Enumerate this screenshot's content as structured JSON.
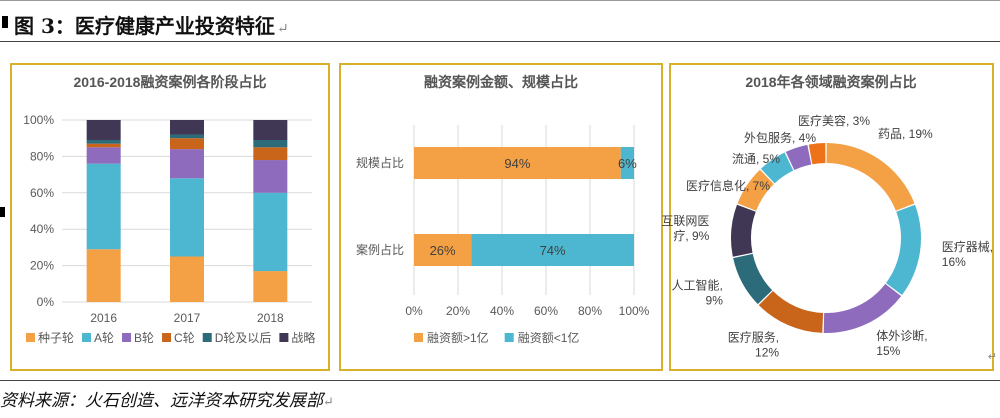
{
  "header": {
    "title": "图 3：医疗健康产业投资特征",
    "return_mark": "↵"
  },
  "source": {
    "text": "资料来源：火石创造、远洋资本研究发展部",
    "return_mark": "↵"
  },
  "corner_mark": "↵",
  "chart_data": [
    {
      "type": "bar",
      "stacked": true,
      "title": "2016-2018融资案例各阶段占比",
      "categories": [
        "2016",
        "2017",
        "2018"
      ],
      "y_ticks": [
        "0%",
        "20%",
        "40%",
        "60%",
        "80%",
        "100%"
      ],
      "ylim": [
        0,
        100
      ],
      "grid": true,
      "legend": "bottom",
      "series": [
        {
          "name": "种子轮",
          "color": "#f4a045",
          "values": [
            29,
            25,
            17
          ]
        },
        {
          "name": "A轮",
          "color": "#4db6d0",
          "values": [
            47,
            43,
            43
          ]
        },
        {
          "name": "B轮",
          "color": "#8e6bbd",
          "values": [
            9,
            16,
            18
          ]
        },
        {
          "name": "C轮",
          "color": "#c9641b",
          "values": [
            2,
            6,
            7
          ]
        },
        {
          "name": "D轮及以后",
          "color": "#2b6b7a",
          "values": [
            2,
            2,
            4
          ]
        },
        {
          "name": "战略",
          "color": "#3f3754",
          "values": [
            11,
            8,
            11
          ]
        }
      ]
    },
    {
      "type": "bar",
      "orientation": "horizontal",
      "stacked": true,
      "title": "融资案例金额、规模占比",
      "categories": [
        "规模占比",
        "案例占比"
      ],
      "x_ticks": [
        "0%",
        "20%",
        "40%",
        "60%",
        "80%",
        "100%"
      ],
      "xlim": [
        0,
        100
      ],
      "grid": true,
      "legend": "bottom",
      "series": [
        {
          "name": "融资额>1亿",
          "color": "#f4a045",
          "values": [
            94,
            26
          ],
          "labels": [
            "94%",
            "26%"
          ]
        },
        {
          "name": "融资额<1亿",
          "color": "#4db6d0",
          "values": [
            6,
            74
          ],
          "labels": [
            "6%",
            "74%"
          ]
        }
      ]
    },
    {
      "type": "pie",
      "donut": true,
      "title": "2018年各领域融资案例占比",
      "slices": [
        {
          "name": "药品",
          "value": 19,
          "color": "#f4a045",
          "label": "药品, 19%"
        },
        {
          "name": "医疗器械",
          "value": 16,
          "color": "#4db6d0",
          "label": "医疗器械,\n16%"
        },
        {
          "name": "体外诊断",
          "value": 15,
          "color": "#8e6bbd",
          "label": "体外诊断,\n15%"
        },
        {
          "name": "医疗服务",
          "value": 12,
          "color": "#c9641b",
          "label": "医疗服务,\n12%"
        },
        {
          "name": "人工智能",
          "value": 9,
          "color": "#2b6b7a",
          "label": "人工智能,\n9%"
        },
        {
          "name": "互联网医疗",
          "value": 9,
          "color": "#3f3754",
          "label": "互联网医\n疗, 9%"
        },
        {
          "name": "医疗信息化",
          "value": 7,
          "color": "#f4a045",
          "label": "医疗信息化, 7%"
        },
        {
          "name": "流通",
          "value": 5,
          "color": "#4db6d0",
          "label": "流通, 5%"
        },
        {
          "name": "外包服务",
          "value": 4,
          "color": "#8e6bbd",
          "label": "外包服务, 4%"
        },
        {
          "name": "医疗美容",
          "value": 3,
          "color": "#ee7218",
          "label": "医疗美容, 3%"
        }
      ]
    }
  ]
}
